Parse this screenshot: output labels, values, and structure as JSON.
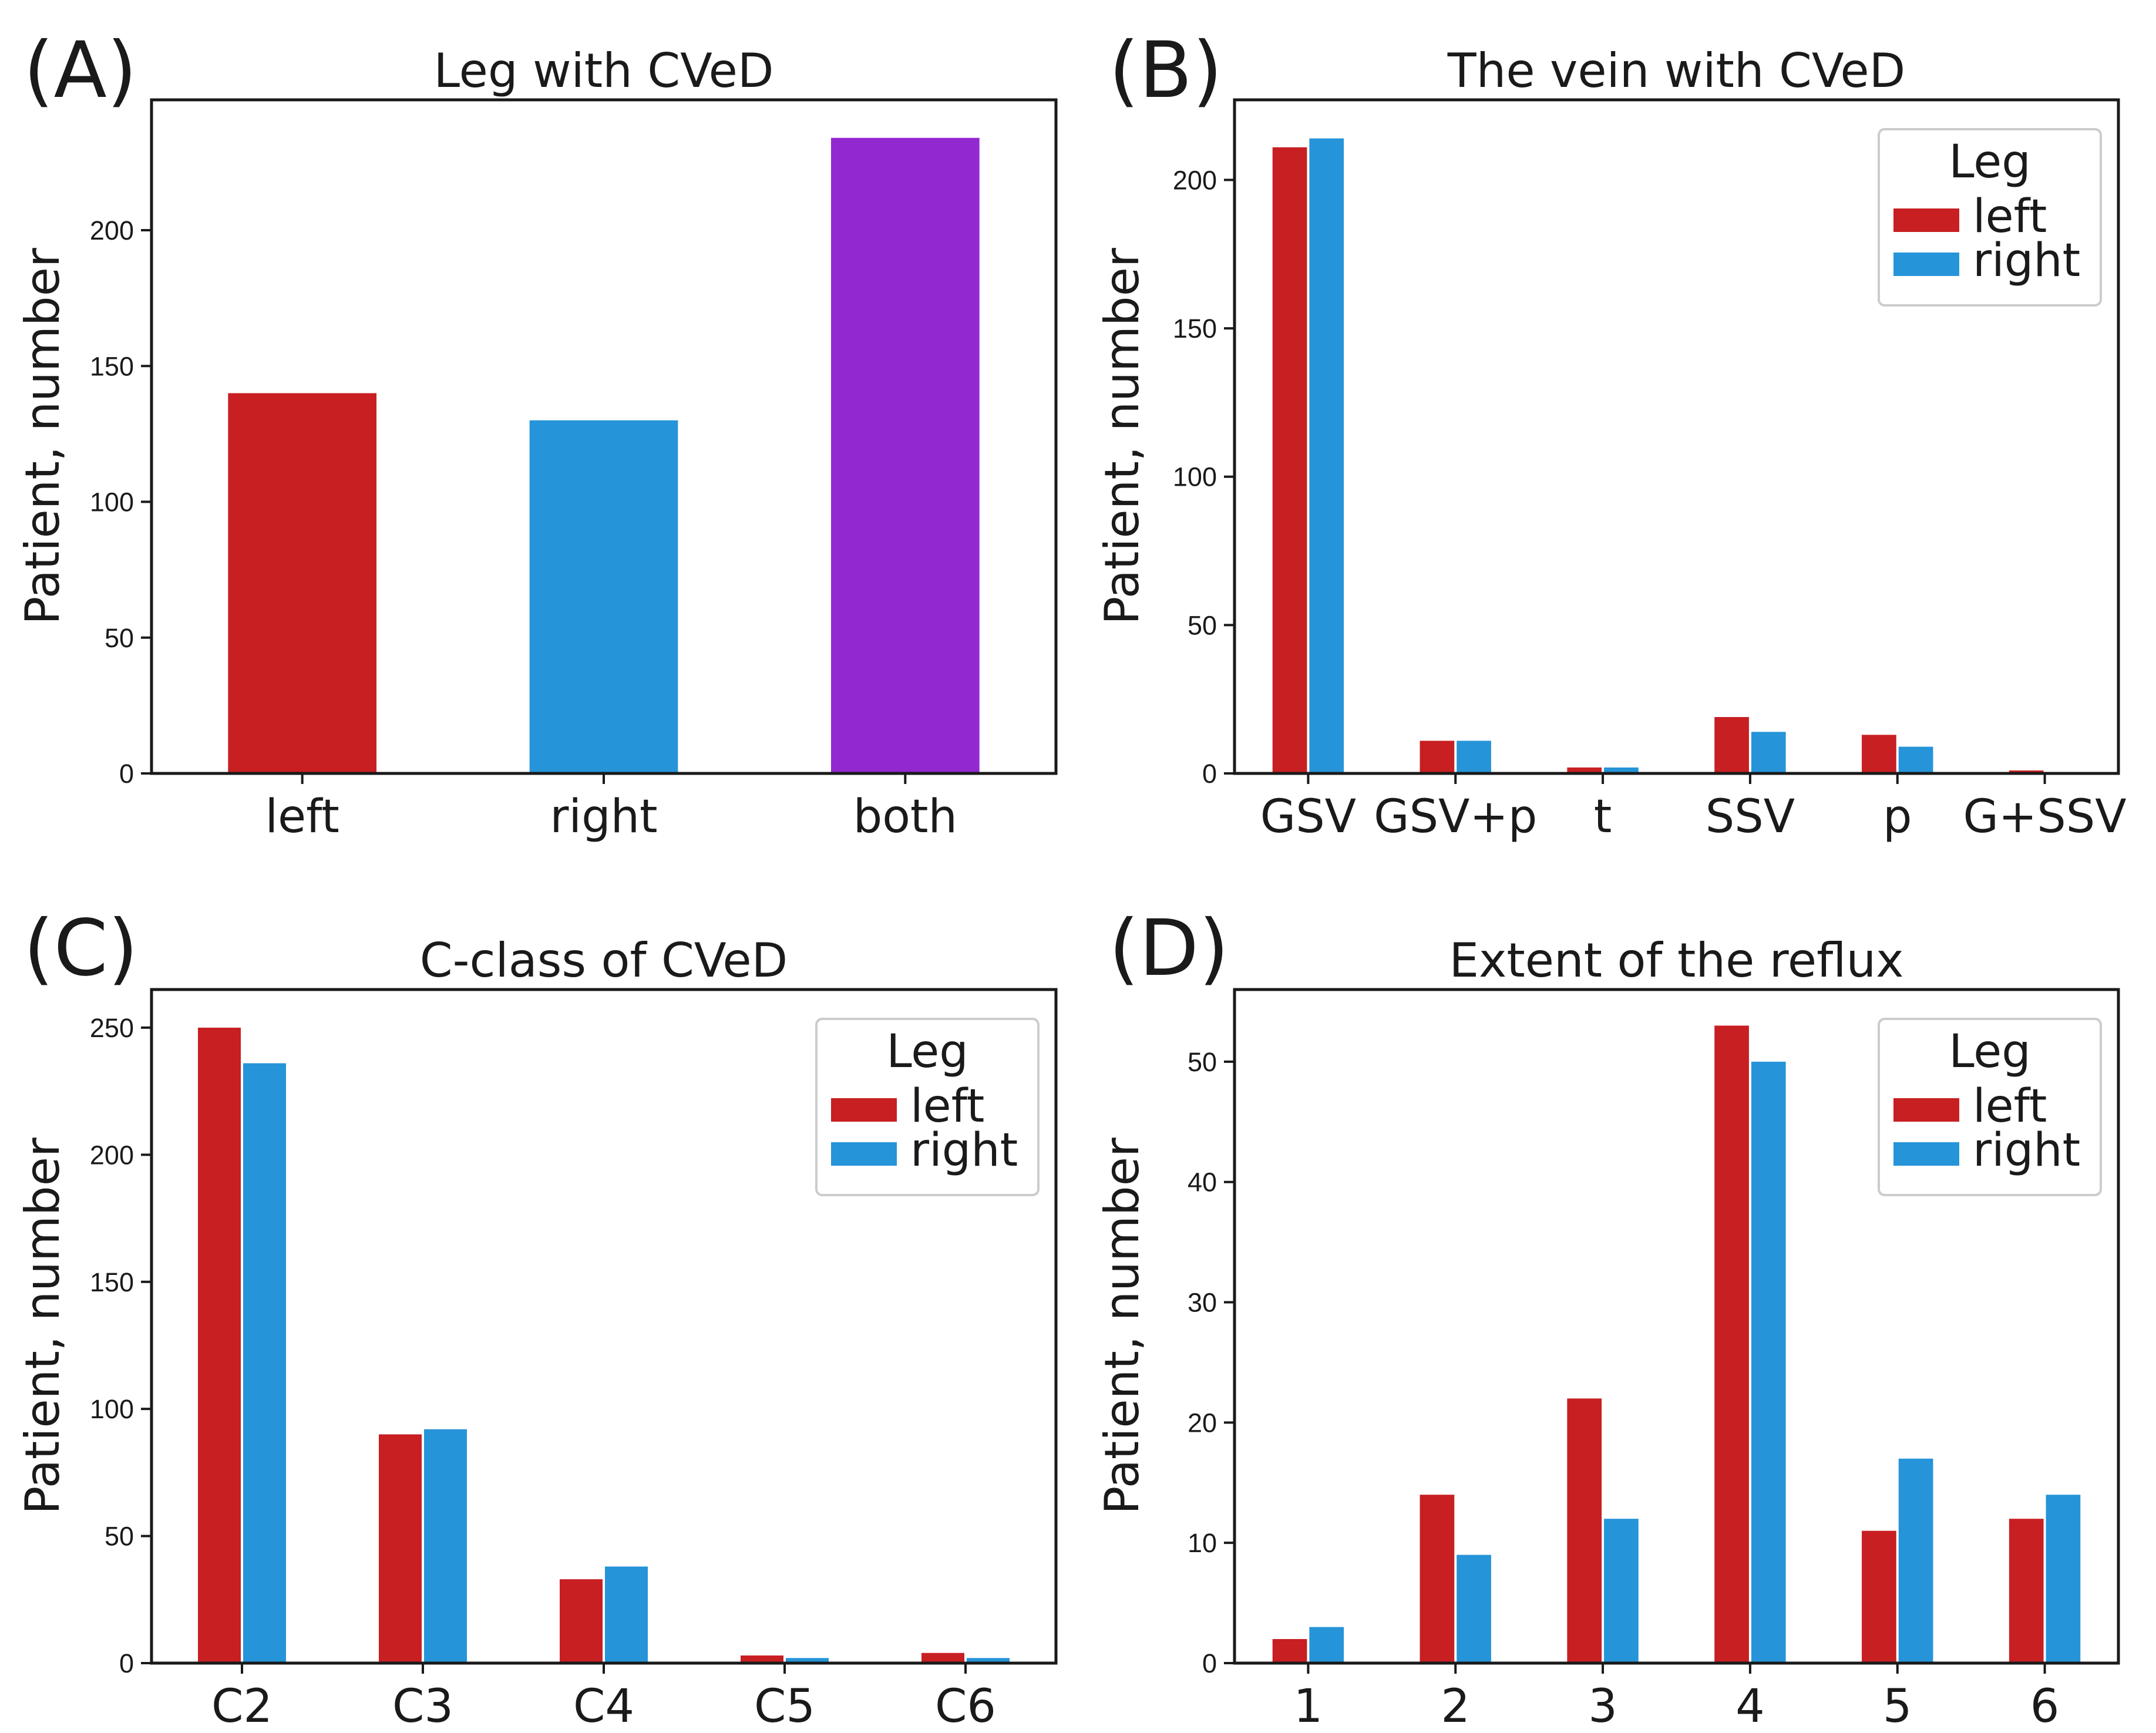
{
  "chart_data": [
    {
      "type": "bar",
      "letter": "(A)",
      "title": "Leg with CVeD",
      "xlabel": "",
      "ylabel": "Patient, number",
      "ylim": [
        0,
        248
      ],
      "yticks": [
        0,
        50,
        100,
        150,
        200
      ],
      "categories": [
        "left",
        "right",
        "both"
      ],
      "bar_colors": [
        "#c71f22",
        "#2694d8",
        "#9228d0"
      ],
      "series": [
        {
          "name": "count",
          "values": [
            140,
            130,
            234
          ]
        }
      ],
      "legend": null
    },
    {
      "type": "bar",
      "letter": "(B)",
      "title": "The vein with CVeD",
      "xlabel": "",
      "ylabel": "Patient, number",
      "ylim": [
        0,
        227
      ],
      "yticks": [
        0,
        50,
        100,
        150,
        200
      ],
      "categories": [
        "GSV",
        "GSV+p",
        "t",
        "SSV",
        "p",
        "G+SSV"
      ],
      "series": [
        {
          "name": "left",
          "color": "#c71f22",
          "values": [
            211,
            11,
            2,
            19,
            13,
            1
          ]
        },
        {
          "name": "right",
          "color": "#2694d8",
          "values": [
            214,
            11,
            2,
            14,
            9,
            0
          ]
        }
      ],
      "legend": {
        "title": "Leg",
        "position": "top-right"
      }
    },
    {
      "type": "bar",
      "letter": "(C)",
      "title": "C-class of CVeD",
      "xlabel": "",
      "ylabel": "Patient, number",
      "ylim": [
        0,
        265
      ],
      "yticks": [
        0,
        50,
        100,
        150,
        200,
        250
      ],
      "categories": [
        "C2",
        "C3",
        "C4",
        "C5",
        "C6"
      ],
      "series": [
        {
          "name": "left",
          "color": "#c71f22",
          "values": [
            250,
            90,
            33,
            3,
            4
          ]
        },
        {
          "name": "right",
          "color": "#2694d8",
          "values": [
            236,
            92,
            38,
            2,
            2
          ]
        }
      ],
      "legend": {
        "title": "Leg",
        "position": "top-right"
      }
    },
    {
      "type": "bar",
      "letter": "(D)",
      "title": "Extent of the reflux",
      "xlabel": "",
      "ylabel": "Patient, number",
      "ylim": [
        0,
        56
      ],
      "yticks": [
        0,
        10,
        20,
        30,
        40,
        50
      ],
      "categories": [
        "1",
        "2",
        "3",
        "4",
        "5",
        "6"
      ],
      "series": [
        {
          "name": "left",
          "color": "#c71f22",
          "values": [
            2,
            14,
            22,
            53,
            11,
            12
          ]
        },
        {
          "name": "right",
          "color": "#2694d8",
          "values": [
            3,
            9,
            12,
            50,
            17,
            14
          ]
        }
      ],
      "legend": {
        "title": "Leg",
        "position": "top-right"
      }
    }
  ]
}
